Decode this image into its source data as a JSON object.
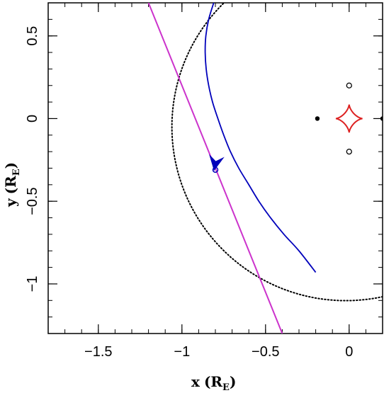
{
  "chart_data": {
    "type": "line",
    "xlabel": "x",
    "xlabel_unit": "R",
    "xlabel_unit_sub": "E",
    "ylabel": "y",
    "ylabel_unit": "R",
    "ylabel_unit_sub": "E",
    "xlim": [
      -1.8,
      0.2
    ],
    "ylim": [
      -1.3,
      0.7
    ],
    "x_ticks": [
      {
        "value": -1.5,
        "label": "−1.5"
      },
      {
        "value": -1.0,
        "label": "−1"
      },
      {
        "value": -0.5,
        "label": "−0.5"
      },
      {
        "value": 0.0,
        "label": "0"
      }
    ],
    "y_ticks": [
      {
        "value": 0.5,
        "label": "0.5"
      },
      {
        "value": 0.0,
        "label": "0"
      },
      {
        "value": -0.5,
        "label": "−0.5"
      },
      {
        "value": -1.0,
        "label": "−1"
      }
    ],
    "grid": false,
    "colors": {
      "straight_path": "#cc33cc",
      "curved_path": "#0000bb",
      "caustic": "#dd2222",
      "circle": "#000000",
      "marker": "#0000bb"
    },
    "straight_path": {
      "x": [
        -1.2,
        -0.4
      ],
      "y": [
        0.7,
        -1.3
      ]
    },
    "curved_path": {
      "x": [
        -0.81,
        -0.84,
        -0.857,
        -0.861,
        -0.855,
        -0.84,
        -0.817,
        -0.785,
        -0.75,
        -0.71,
        -0.66,
        -0.6,
        -0.54,
        -0.47,
        -0.39,
        -0.3,
        -0.2
      ],
      "y": [
        0.7,
        0.6,
        0.5,
        0.4,
        0.3,
        0.2,
        0.1,
        0.0,
        -0.1,
        -0.2,
        -0.3,
        -0.4,
        -0.5,
        -0.6,
        -0.7,
        -0.8,
        -0.93
      ]
    },
    "circle": {
      "cx": -0.02,
      "cy": -0.05,
      "r": 1.04
    },
    "caustic": {
      "cx": 0.0,
      "cy": 0.0,
      "a": 0.08,
      "b": 0.085
    },
    "filled_points": {
      "x": [
        -0.19,
        0.2
      ],
      "y": [
        0.0,
        0.0
      ]
    },
    "open_points": {
      "x": [
        0.0,
        0.0
      ],
      "y": [
        0.2,
        -0.2
      ]
    },
    "marker_point": {
      "x": -0.8,
      "y": -0.31
    },
    "arrow": {
      "x": -0.8,
      "y": -0.27,
      "direction_deg": 260
    }
  }
}
